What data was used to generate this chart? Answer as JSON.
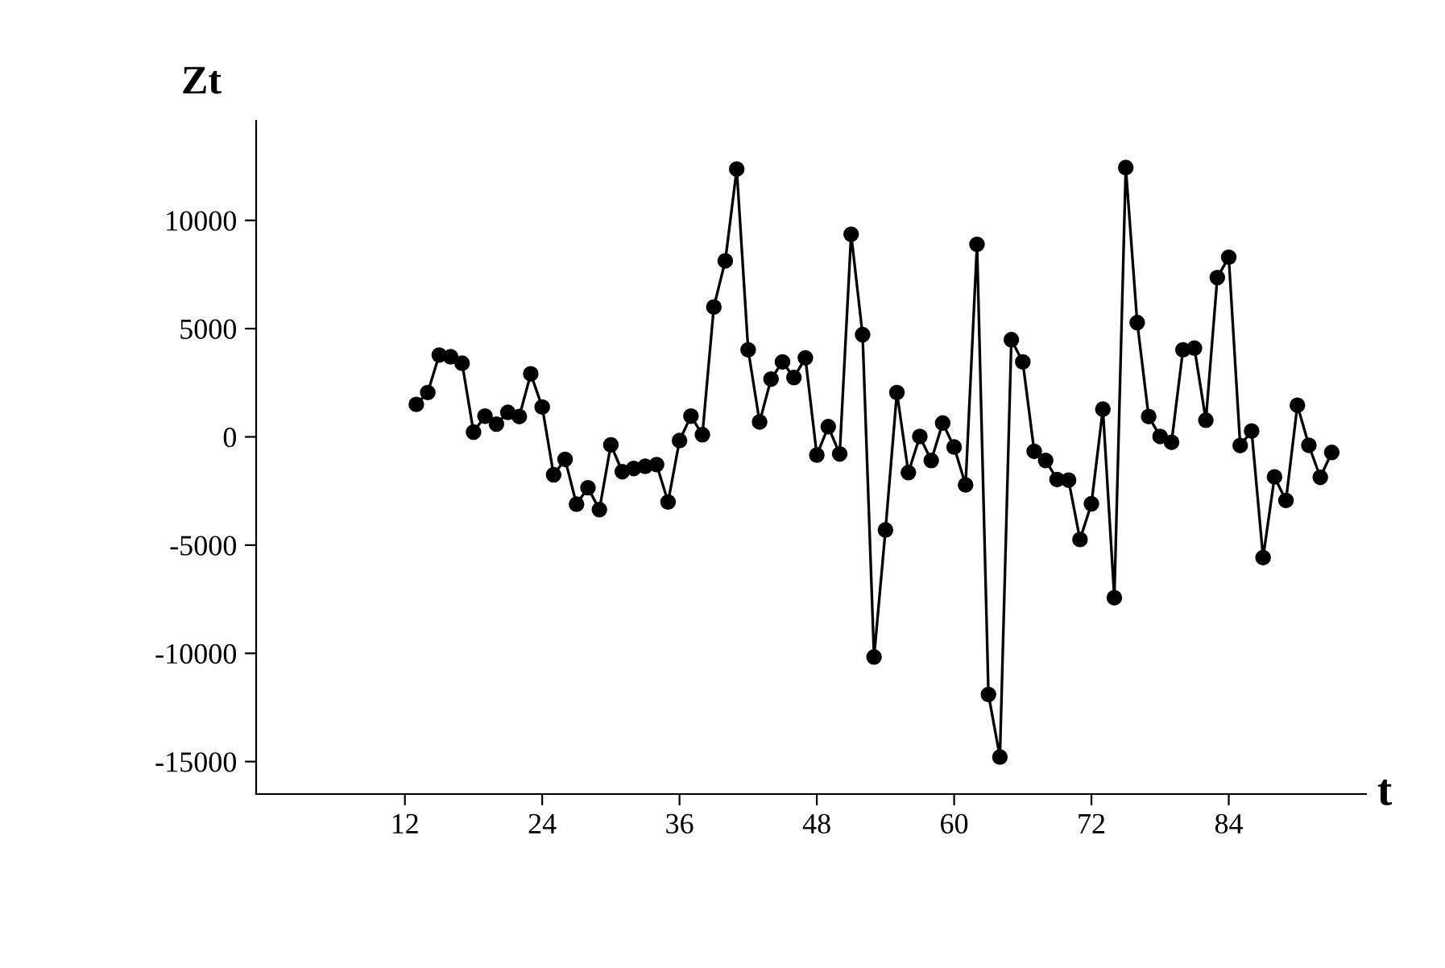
{
  "chart_data": {
    "type": "line",
    "xlabel": "t",
    "ylabel": "Zt",
    "x": [
      13,
      14,
      15,
      16,
      17,
      18,
      19,
      20,
      21,
      22,
      23,
      24,
      25,
      26,
      27,
      28,
      29,
      30,
      31,
      32,
      33,
      34,
      35,
      36,
      37,
      38,
      39,
      40,
      41,
      42,
      43,
      44,
      45,
      46,
      47,
      48,
      49,
      50,
      51,
      52,
      53,
      54,
      55,
      56,
      57,
      58,
      59,
      60,
      61,
      62,
      63,
      64,
      65,
      66,
      67,
      68,
      69,
      70,
      71,
      72,
      73,
      74,
      75,
      76,
      77,
      78,
      79,
      80,
      81,
      82,
      83,
      84,
      85,
      86,
      87,
      88,
      89,
      90,
      91,
      92,
      93
    ],
    "series": [
      {
        "color": "#000000",
        "values": [
          1500,
          2050,
          3780,
          3700,
          3400,
          220,
          960,
          590,
          1130,
          940,
          2910,
          1380,
          -1750,
          -1040,
          -3110,
          -2350,
          -3360,
          -370,
          -1610,
          -1460,
          -1360,
          -1280,
          -3010,
          -170,
          960,
          100,
          6000,
          8130,
          12370,
          4020,
          690,
          2670,
          3460,
          2740,
          3650,
          -840,
          470,
          -790,
          9360,
          4720,
          -10170,
          -4300,
          2050,
          -1650,
          20,
          -1090,
          640,
          -470,
          -2220,
          8890,
          -11900,
          -14790,
          4490,
          3460,
          -670,
          -1090,
          -1970,
          -2000,
          -4740,
          -3090,
          1280,
          -7430,
          12440,
          5280,
          940,
          20,
          -250,
          4020,
          4100,
          770,
          7360,
          8300,
          -400,
          270,
          -5580,
          -1850,
          -2940,
          1460,
          -390,
          -1870,
          -720
        ]
      }
    ],
    "xlim": [
      -1,
      96
    ],
    "xticks": [
      12,
      24,
      36,
      48,
      60,
      72,
      84
    ],
    "ylim": [
      -16500,
      14600
    ],
    "yticks": [
      -15000,
      -10000,
      -5000,
      0,
      5000,
      10000
    ],
    "grid": false,
    "legend": false,
    "marker": "circle",
    "line_style": "solid"
  }
}
